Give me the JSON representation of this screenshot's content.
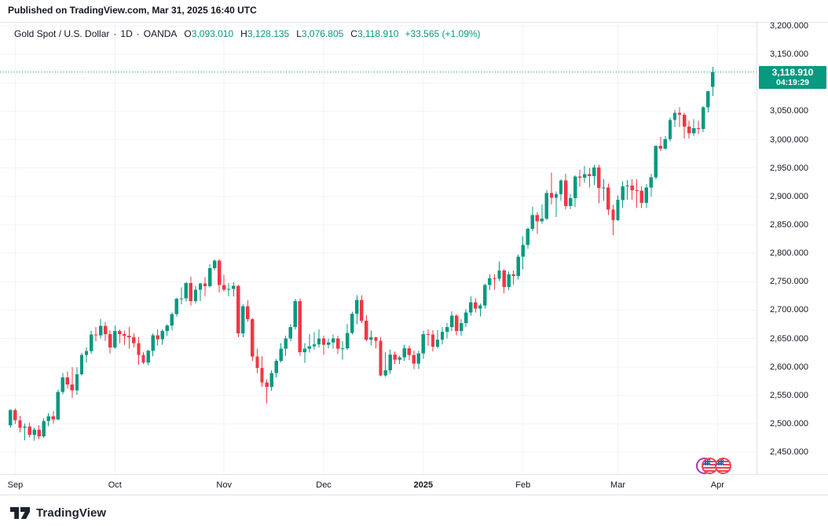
{
  "header": {
    "published_text": "Published on TradingView.com, Mar 31, 2025 16:40 UTC"
  },
  "legend": {
    "symbol": "Gold Spot / U.S. Dollar",
    "separator": "·",
    "interval": "1D",
    "exchange": "OANDA",
    "ohlc": [
      {
        "label": "O",
        "value": "3,093.010"
      },
      {
        "label": "H",
        "value": "3,128.135"
      },
      {
        "label": "L",
        "value": "3,076.805"
      },
      {
        "label": "C",
        "value": "3,118.910"
      }
    ],
    "change": "+33.565 (+1.09%)"
  },
  "price_badge": {
    "price": "3,118.910",
    "countdown": "04:19:29"
  },
  "footer": {
    "brand": "TradingView"
  },
  "icons": {
    "economic_event": "us-flag-economic-calendar-event",
    "logo": "tradingview-logo"
  },
  "colors": {
    "up": "#089981",
    "down": "#f23645",
    "text": "#131722",
    "grid": "#f0f3fa",
    "border": "#e0e3eb",
    "badge_bg": "#089981",
    "badge_text": "#ffffff"
  },
  "chart_data": {
    "type": "candlestick",
    "title": "Gold Spot / U.S. Dollar · 1D · OANDA",
    "symbol": "XAU/USD",
    "interval": "1D",
    "exchange": "OANDA",
    "last": {
      "open": 3093.01,
      "high": 3128.135,
      "low": 3076.805,
      "close": 3118.91,
      "change_text": "+33.565 (+1.09%)"
    },
    "current_price": 3118.91,
    "countdown": "04:19:29",
    "y_axis": {
      "min": 2450,
      "max": 3200,
      "step": 50,
      "format": "#,##0.000",
      "visible_labels": [
        3200,
        3150,
        3050,
        3000,
        2950,
        2900,
        2850,
        2800,
        2750,
        2700,
        2650,
        2600,
        2550,
        2500,
        2450
      ]
    },
    "x_axis": {
      "range": "Sep 2024 - Apr 2025",
      "ticks": [
        {
          "label": "Sep",
          "index": 1,
          "bold": false
        },
        {
          "label": "Oct",
          "index": 22,
          "bold": false
        },
        {
          "label": "Nov",
          "index": 45,
          "bold": false
        },
        {
          "label": "Dec",
          "index": 66,
          "bold": false
        },
        {
          "label": "2025",
          "index": 87,
          "bold": true
        },
        {
          "label": "Feb",
          "index": 108,
          "bold": false
        },
        {
          "label": "Mar",
          "index": 128,
          "bold": false
        },
        {
          "label": "Apr",
          "index": 149,
          "bold": false
        }
      ]
    },
    "candles": [
      [
        2497,
        2526,
        2493,
        2524
      ],
      [
        2524,
        2527,
        2500,
        2506
      ],
      [
        2506,
        2514,
        2485,
        2493
      ],
      [
        2493,
        2501,
        2471,
        2495
      ],
      [
        2495,
        2502,
        2476,
        2481
      ],
      [
        2481,
        2493,
        2470,
        2490
      ],
      [
        2490,
        2497,
        2473,
        2478
      ],
      [
        2478,
        2510,
        2475,
        2505
      ],
      [
        2505,
        2519,
        2496,
        2513
      ],
      [
        2513,
        2522,
        2501,
        2508
      ],
      [
        2508,
        2560,
        2506,
        2556
      ],
      [
        2556,
        2589,
        2552,
        2582
      ],
      [
        2582,
        2592,
        2562,
        2569
      ],
      [
        2569,
        2600,
        2546,
        2559
      ],
      [
        2559,
        2600,
        2551,
        2587
      ],
      [
        2587,
        2625,
        2585,
        2621
      ],
      [
        2621,
        2634,
        2608,
        2628
      ],
      [
        2628,
        2664,
        2623,
        2657
      ],
      [
        2657,
        2670,
        2645,
        2656
      ],
      [
        2656,
        2685,
        2650,
        2672
      ],
      [
        2672,
        2679,
        2646,
        2658
      ],
      [
        2658,
        2665,
        2624,
        2634
      ],
      [
        2634,
        2673,
        2632,
        2663
      ],
      [
        2663,
        2666,
        2642,
        2658
      ],
      [
        2658,
        2664,
        2639,
        2655
      ],
      [
        2655,
        2670,
        2632,
        2652
      ],
      [
        2652,
        2659,
        2634,
        2642
      ],
      [
        2642,
        2653,
        2604,
        2621
      ],
      [
        2621,
        2626,
        2605,
        2608
      ],
      [
        2608,
        2630,
        2603,
        2629
      ],
      [
        2629,
        2659,
        2619,
        2656
      ],
      [
        2656,
        2666,
        2638,
        2649
      ],
      [
        2649,
        2666,
        2639,
        2663
      ],
      [
        2663,
        2675,
        2655,
        2673
      ],
      [
        2673,
        2696,
        2665,
        2693
      ],
      [
        2693,
        2722,
        2689,
        2720
      ],
      [
        2720,
        2740,
        2710,
        2721
      ],
      [
        2721,
        2750,
        2715,
        2748
      ],
      [
        2748,
        2759,
        2708,
        2716
      ],
      [
        2716,
        2743,
        2712,
        2736
      ],
      [
        2736,
        2748,
        2716,
        2747
      ],
      [
        2747,
        2758,
        2725,
        2742
      ],
      [
        2742,
        2781,
        2740,
        2774
      ],
      [
        2774,
        2789,
        2770,
        2787
      ],
      [
        2787,
        2790,
        2731,
        2744
      ],
      [
        2744,
        2762,
        2733,
        2736
      ],
      [
        2736,
        2748,
        2724,
        2737
      ],
      [
        2737,
        2749,
        2724,
        2743
      ],
      [
        2743,
        2744,
        2652,
        2659
      ],
      [
        2659,
        2710,
        2652,
        2707
      ],
      [
        2707,
        2717,
        2680,
        2684
      ],
      [
        2684,
        2686,
        2611,
        2618
      ],
      [
        2618,
        2632,
        2589,
        2598
      ],
      [
        2598,
        2619,
        2565,
        2573
      ],
      [
        2573,
        2578,
        2536,
        2565
      ],
      [
        2565,
        2594,
        2558,
        2589
      ],
      [
        2589,
        2614,
        2582,
        2611
      ],
      [
        2611,
        2642,
        2608,
        2632
      ],
      [
        2632,
        2655,
        2620,
        2650
      ],
      [
        2650,
        2675,
        2645,
        2670
      ],
      [
        2670,
        2720,
        2666,
        2716
      ],
      [
        2716,
        2721,
        2620,
        2626
      ],
      [
        2626,
        2642,
        2607,
        2632
      ],
      [
        2632,
        2658,
        2625,
        2636
      ],
      [
        2636,
        2661,
        2631,
        2640
      ],
      [
        2640,
        2666,
        2634,
        2650
      ],
      [
        2650,
        2655,
        2622,
        2639
      ],
      [
        2639,
        2650,
        2633,
        2643
      ],
      [
        2643,
        2657,
        2632,
        2650
      ],
      [
        2650,
        2655,
        2623,
        2632
      ],
      [
        2632,
        2645,
        2613,
        2633
      ],
      [
        2633,
        2676,
        2630,
        2660
      ],
      [
        2660,
        2697,
        2657,
        2694
      ],
      [
        2694,
        2726,
        2675,
        2718
      ],
      [
        2718,
        2726,
        2677,
        2681
      ],
      [
        2681,
        2691,
        2645,
        2648
      ],
      [
        2648,
        2664,
        2638,
        2652
      ],
      [
        2652,
        2653,
        2633,
        2646
      ],
      [
        2646,
        2652,
        2584,
        2585
      ],
      [
        2585,
        2626,
        2583,
        2594
      ],
      [
        2594,
        2631,
        2588,
        2622
      ],
      [
        2622,
        2627,
        2605,
        2613
      ],
      [
        2613,
        2620,
        2605,
        2617
      ],
      [
        2617,
        2639,
        2611,
        2633
      ],
      [
        2633,
        2638,
        2612,
        2621
      ],
      [
        2621,
        2629,
        2596,
        2606
      ],
      [
        2606,
        2629,
        2596,
        2624
      ],
      [
        2624,
        2664,
        2614,
        2658
      ],
      [
        2658,
        2666,
        2637,
        2657
      ],
      [
        2657,
        2665,
        2627,
        2636
      ],
      [
        2636,
        2665,
        2633,
        2648
      ],
      [
        2648,
        2670,
        2640,
        2662
      ],
      [
        2662,
        2677,
        2650,
        2670
      ],
      [
        2670,
        2698,
        2663,
        2690
      ],
      [
        2690,
        2693,
        2656,
        2663
      ],
      [
        2663,
        2684,
        2655,
        2677
      ],
      [
        2677,
        2702,
        2670,
        2696
      ],
      [
        2696,
        2724,
        2690,
        2714
      ],
      [
        2714,
        2721,
        2696,
        2703
      ],
      [
        2703,
        2712,
        2689,
        2708
      ],
      [
        2708,
        2746,
        2703,
        2744
      ],
      [
        2744,
        2763,
        2735,
        2756
      ],
      [
        2756,
        2763,
        2736,
        2755
      ],
      [
        2755,
        2786,
        2751,
        2770
      ],
      [
        2770,
        2772,
        2730,
        2741
      ],
      [
        2741,
        2768,
        2735,
        2763
      ],
      [
        2763,
        2770,
        2745,
        2760
      ],
      [
        2760,
        2798,
        2754,
        2794
      ],
      [
        2794,
        2830,
        2772,
        2815
      ],
      [
        2815,
        2845,
        2808,
        2843
      ],
      [
        2843,
        2882,
        2839,
        2867
      ],
      [
        2867,
        2872,
        2834,
        2856
      ],
      [
        2856,
        2886,
        2852,
        2861
      ],
      [
        2861,
        2911,
        2858,
        2906
      ],
      [
        2906,
        2942,
        2886,
        2898
      ],
      [
        2898,
        2909,
        2864,
        2904
      ],
      [
        2904,
        2930,
        2892,
        2928
      ],
      [
        2928,
        2940,
        2877,
        2883
      ],
      [
        2883,
        2905,
        2878,
        2897
      ],
      [
        2897,
        2937,
        2881,
        2935
      ],
      [
        2935,
        2947,
        2918,
        2933
      ],
      [
        2933,
        2954,
        2924,
        2939
      ],
      [
        2939,
        2950,
        2916,
        2936
      ],
      [
        2936,
        2956,
        2920,
        2951
      ],
      [
        2951,
        2956,
        2888,
        2915
      ],
      [
        2915,
        2930,
        2892,
        2916
      ],
      [
        2916,
        2923,
        2867,
        2877
      ],
      [
        2877,
        2885,
        2832,
        2858
      ],
      [
        2858,
        2902,
        2857,
        2894
      ],
      [
        2894,
        2927,
        2880,
        2918
      ],
      [
        2918,
        2929,
        2894,
        2919
      ],
      [
        2919,
        2930,
        2894,
        2911
      ],
      [
        2911,
        2930,
        2880,
        2910
      ],
      [
        2910,
        2918,
        2880,
        2889
      ],
      [
        2889,
        2922,
        2880,
        2916
      ],
      [
        2916,
        2940,
        2900,
        2934
      ],
      [
        2934,
        2990,
        2930,
        2989
      ],
      [
        2989,
        3005,
        2980,
        2984
      ],
      [
        2984,
        3006,
        2982,
        3001
      ],
      [
        3001,
        3039,
        2997,
        3035
      ],
      [
        3035,
        3052,
        3022,
        3047
      ],
      [
        3047,
        3057,
        3022,
        3044
      ],
      [
        3044,
        3047,
        3002,
        3023
      ],
      [
        3023,
        3033,
        3002,
        3011
      ],
      [
        3011,
        3036,
        3006,
        3020
      ],
      [
        3020,
        3033,
        3010,
        3019
      ],
      [
        3019,
        3059,
        3013,
        3057
      ],
      [
        3057,
        3086,
        3048,
        3085
      ],
      [
        3093.01,
        3128.135,
        3076.805,
        3118.91
      ]
    ]
  }
}
